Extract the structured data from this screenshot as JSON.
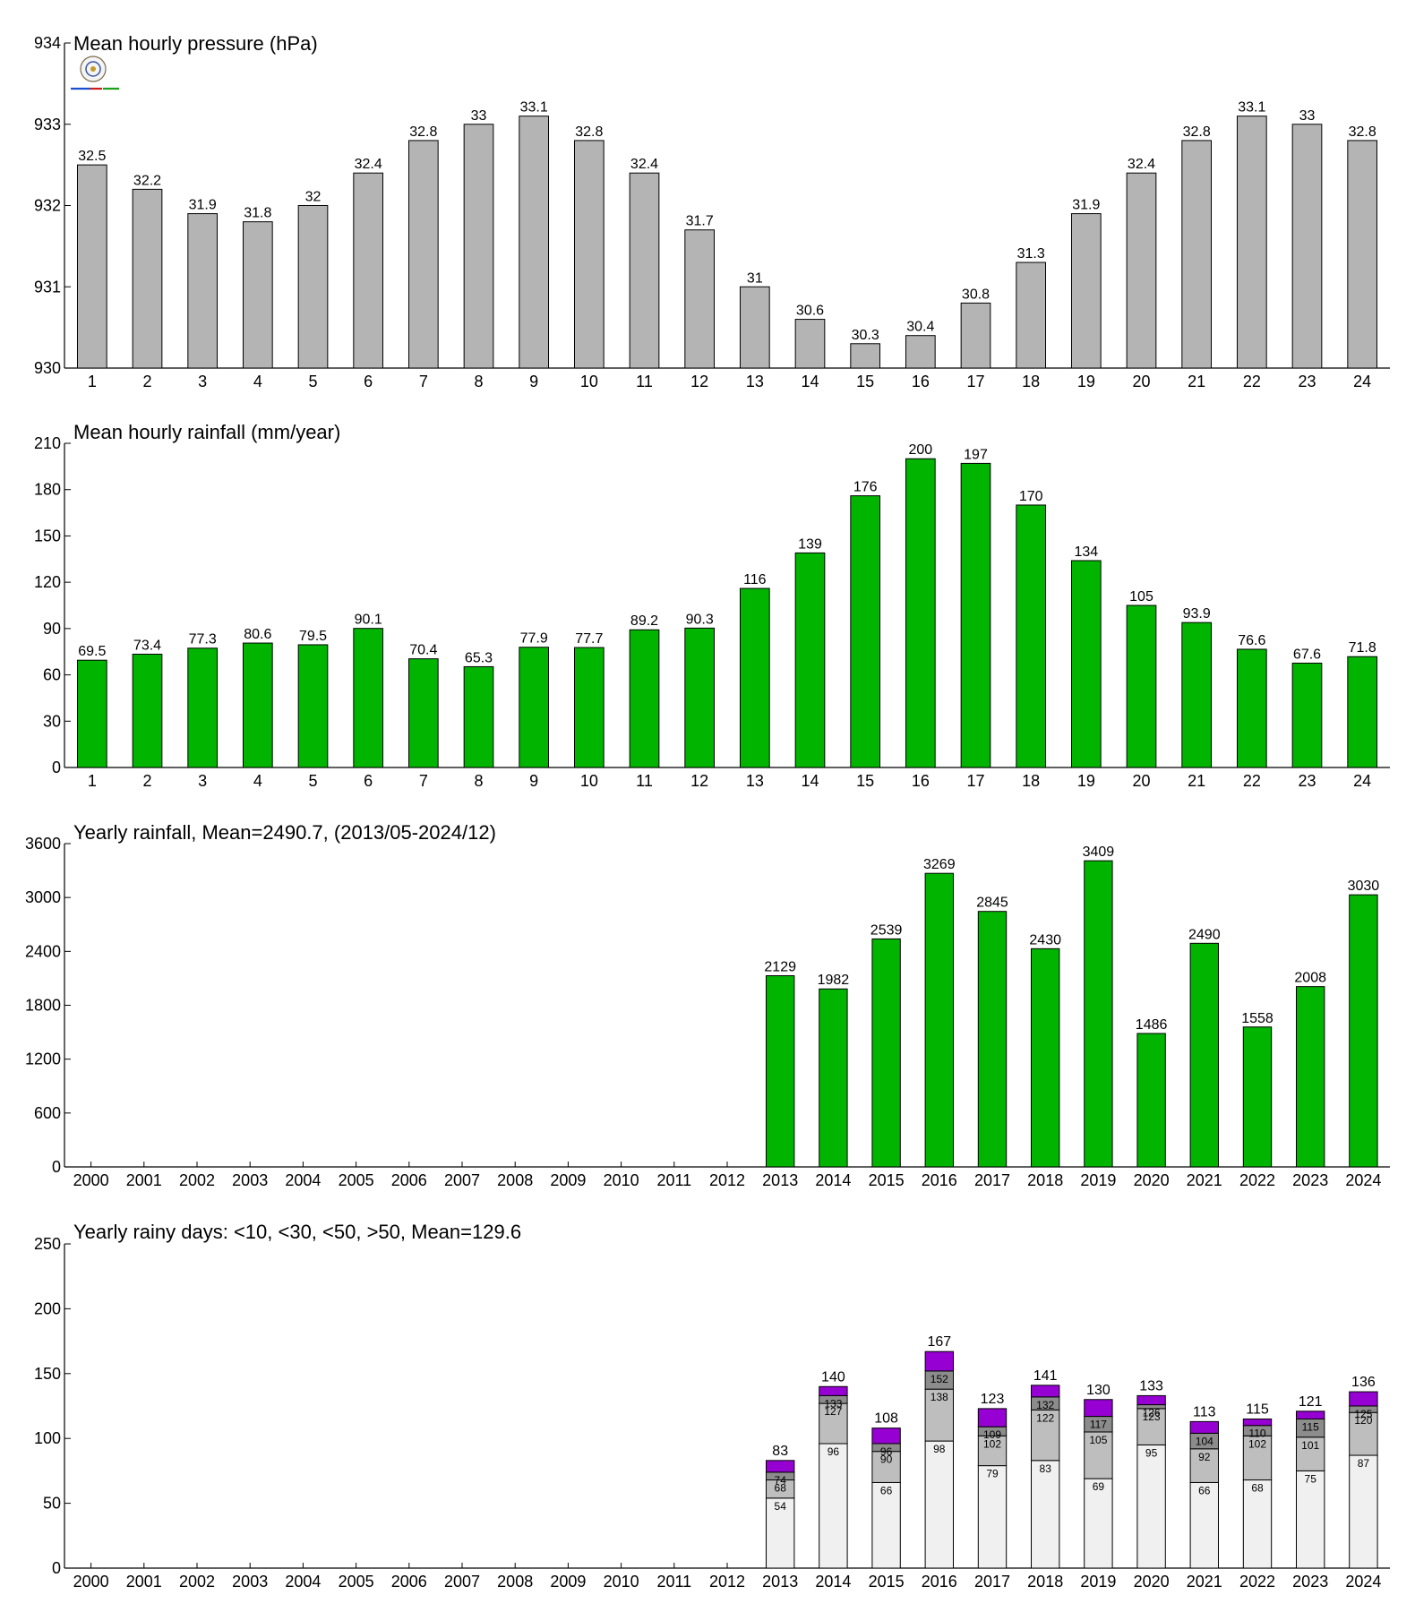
{
  "chart_data": [
    {
      "type": "bar",
      "title": "Mean hourly pressure (hPa)",
      "categories": [
        "1",
        "2",
        "3",
        "4",
        "5",
        "6",
        "7",
        "8",
        "9",
        "10",
        "11",
        "12",
        "13",
        "14",
        "15",
        "16",
        "17",
        "18",
        "19",
        "20",
        "21",
        "22",
        "23",
        "24"
      ],
      "values": [
        932.5,
        932.2,
        931.9,
        931.8,
        932.0,
        932.4,
        932.8,
        933.0,
        933.1,
        932.8,
        932.4,
        931.7,
        931.0,
        930.6,
        930.3,
        930.4,
        930.8,
        931.3,
        931.9,
        932.4,
        932.8,
        933.1,
        933.0,
        932.8
      ],
      "data_labels": [
        "32.5",
        "32.2",
        "31.9",
        "31.8",
        "32",
        "32.4",
        "32.8",
        "33",
        "33.1",
        "32.8",
        "32.4",
        "31.7",
        "31",
        "30.6",
        "30.3",
        "30.4",
        "30.8",
        "31.3",
        "31.9",
        "32.4",
        "32.8",
        "33.1",
        "33",
        "32.8"
      ],
      "ylim": [
        930,
        934
      ],
      "yticks": [
        930,
        931,
        932,
        933,
        934
      ],
      "bar_color": "#b4b4b4",
      "grid": false
    },
    {
      "type": "bar",
      "title": "Mean hourly rainfall (mm/year)",
      "categories": [
        "1",
        "2",
        "3",
        "4",
        "5",
        "6",
        "7",
        "8",
        "9",
        "10",
        "11",
        "12",
        "13",
        "14",
        "15",
        "16",
        "17",
        "18",
        "19",
        "20",
        "21",
        "22",
        "23",
        "24"
      ],
      "values": [
        69.5,
        73.4,
        77.3,
        80.6,
        79.5,
        90.1,
        70.4,
        65.3,
        77.9,
        77.7,
        89.2,
        90.3,
        116,
        139,
        176,
        200,
        197,
        170,
        134,
        105,
        93.9,
        76.6,
        67.6,
        71.8
      ],
      "data_labels": [
        "69.5",
        "73.4",
        "77.3",
        "80.6",
        "79.5",
        "90.1",
        "70.4",
        "65.3",
        "77.9",
        "77.7",
        "89.2",
        "90.3",
        "116",
        "139",
        "176",
        "200",
        "197",
        "170",
        "134",
        "105",
        "93.9",
        "76.6",
        "67.6",
        "71.8"
      ],
      "ylim": [
        0,
        210
      ],
      "yticks": [
        0,
        30,
        60,
        90,
        120,
        150,
        180,
        210
      ],
      "bar_color": "#00b400",
      "grid": false
    },
    {
      "type": "bar",
      "title": "Yearly rainfall, Mean=2490.7, (2013/05-2024/12)",
      "categories": [
        "2000",
        "2001",
        "2002",
        "2003",
        "2004",
        "2005",
        "2006",
        "2007",
        "2008",
        "2009",
        "2010",
        "2011",
        "2012",
        "2013",
        "2014",
        "2015",
        "2016",
        "2017",
        "2018",
        "2019",
        "2020",
        "2021",
        "2022",
        "2023",
        "2024"
      ],
      "values": [
        null,
        null,
        null,
        null,
        null,
        null,
        null,
        null,
        null,
        null,
        null,
        null,
        null,
        2129,
        1982,
        2539,
        3269,
        2845,
        2430,
        3409,
        1486,
        2490,
        1558,
        2008,
        3030
      ],
      "data_labels": [
        "",
        "",
        "",
        "",
        "",
        "",
        "",
        "",
        "",
        "",
        "",
        "",
        "",
        "2129",
        "1982",
        "2539",
        "3269",
        "2845",
        "2430",
        "3409",
        "1486",
        "2490",
        "1558",
        "2008",
        "3030"
      ],
      "ylim": [
        0,
        3600
      ],
      "yticks": [
        0,
        600,
        1200,
        1800,
        2400,
        3000,
        3600
      ],
      "bar_color": "#00b400",
      "grid": false
    },
    {
      "type": "bar",
      "stacked": true,
      "title": "Yearly rainy days: <10, <30, <50, >50, Mean=129.6",
      "categories": [
        "2000",
        "2001",
        "2002",
        "2003",
        "2004",
        "2005",
        "2006",
        "2007",
        "2008",
        "2009",
        "2010",
        "2011",
        "2012",
        "2013",
        "2014",
        "2015",
        "2016",
        "2017",
        "2018",
        "2019",
        "2020",
        "2021",
        "2022",
        "2023",
        "2024"
      ],
      "cumulative": {
        "lt10": [
          null,
          null,
          null,
          null,
          null,
          null,
          null,
          null,
          null,
          null,
          null,
          null,
          null,
          54,
          96,
          66,
          98,
          79,
          83,
          69,
          95,
          66,
          68,
          75,
          87
        ],
        "lt30": [
          null,
          null,
          null,
          null,
          null,
          null,
          null,
          null,
          null,
          null,
          null,
          null,
          null,
          68,
          127,
          90,
          138,
          102,
          122,
          105,
          123,
          92,
          102,
          101,
          120
        ],
        "lt50": [
          null,
          null,
          null,
          null,
          null,
          null,
          null,
          null,
          null,
          null,
          null,
          null,
          null,
          74,
          133,
          96,
          152,
          109,
          132,
          117,
          126,
          104,
          110,
          115,
          125
        ],
        "total": [
          null,
          null,
          null,
          null,
          null,
          null,
          null,
          null,
          null,
          null,
          null,
          null,
          null,
          83,
          140,
          108,
          167,
          123,
          141,
          130,
          133,
          113,
          115,
          121,
          136
        ]
      },
      "segment_labels": {
        "lt10": [
          "",
          "",
          "",
          "",
          "",
          "",
          "",
          "",
          "",
          "",
          "",
          "",
          "",
          "54",
          "96",
          "66",
          "98",
          "79",
          "83",
          "69",
          "95",
          "66",
          "68",
          "75",
          "87"
        ],
        "lt30": [
          "",
          "",
          "",
          "",
          "",
          "",
          "",
          "",
          "",
          "",
          "",
          "",
          "",
          "68",
          "127",
          "90",
          "138",
          "102",
          "122",
          "105",
          "123",
          "92",
          "102",
          "101",
          "120"
        ],
        "lt50": [
          "",
          "",
          "",
          "",
          "",
          "",
          "",
          "",
          "",
          "",
          "",
          "",
          "",
          "74",
          "133",
          "96",
          "152",
          "109",
          "132",
          "117",
          "126",
          "104",
          "110",
          "115",
          "125"
        ],
        "total": [
          "",
          "",
          "",
          "",
          "",
          "",
          "",
          "",
          "",
          "",
          "",
          "",
          "",
          "83",
          "140",
          "108",
          "167",
          "123",
          "141",
          "130",
          "133",
          "113",
          "115",
          "121",
          "136"
        ]
      },
      "segment_colors": {
        "lt10": "#f0f0f0",
        "lt30": "#bebebe",
        "lt50": "#8c8c8c",
        "total": "#9600d2"
      },
      "ylim": [
        0,
        250
      ],
      "yticks": [
        0,
        50,
        100,
        150,
        200,
        250
      ],
      "grid": false
    }
  ]
}
